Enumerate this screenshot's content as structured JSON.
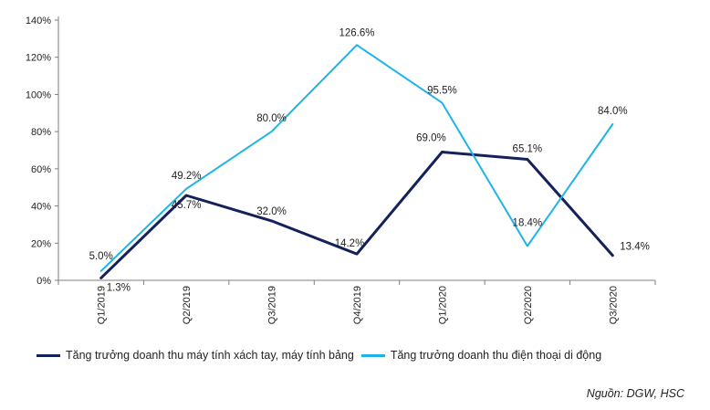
{
  "chart_data": {
    "type": "line",
    "categories": [
      "Q1/2019",
      "Q2/2019",
      "Q3/2019",
      "Q4/2019",
      "Q1/2020",
      "Q2/2020",
      "Q3/2020"
    ],
    "ylim": [
      0,
      140
    ],
    "yticks": [
      0,
      20,
      40,
      60,
      80,
      100,
      120,
      140
    ],
    "ytick_labels": [
      "0%",
      "20%",
      "40%",
      "60%",
      "80%",
      "100%",
      "120%",
      "140%"
    ],
    "series": [
      {
        "name": "Tăng trưởng doanh thu máy tính xách tay, máy tính bảng",
        "color": "#14215a",
        "values": [
          1.3,
          45.7,
          32.0,
          14.2,
          69.0,
          65.1,
          13.4
        ],
        "labels": [
          "1.3%",
          "45.7%",
          "32.0%",
          "14.2%",
          "69.0%",
          "65.1%",
          "13.4%"
        ]
      },
      {
        "name": "Tăng trưởng doanh thu điện thoại di động",
        "color": "#1eb4e8",
        "values": [
          5.0,
          49.2,
          80.0,
          126.6,
          95.5,
          18.4,
          84.0
        ],
        "labels": [
          "5.0%",
          "49.2%",
          "80.0%",
          "126.6%",
          "95.5%",
          "18.4%",
          "84.0%"
        ]
      }
    ],
    "title": "",
    "xlabel": "",
    "ylabel": ""
  },
  "legend": {
    "laptop": "Tăng trưởng doanh thu máy tính xách tay, máy tính bảng",
    "phone": "Tăng trưởng doanh thu điện thoại di động"
  },
  "source": "Nguồn: DGW, HSC"
}
